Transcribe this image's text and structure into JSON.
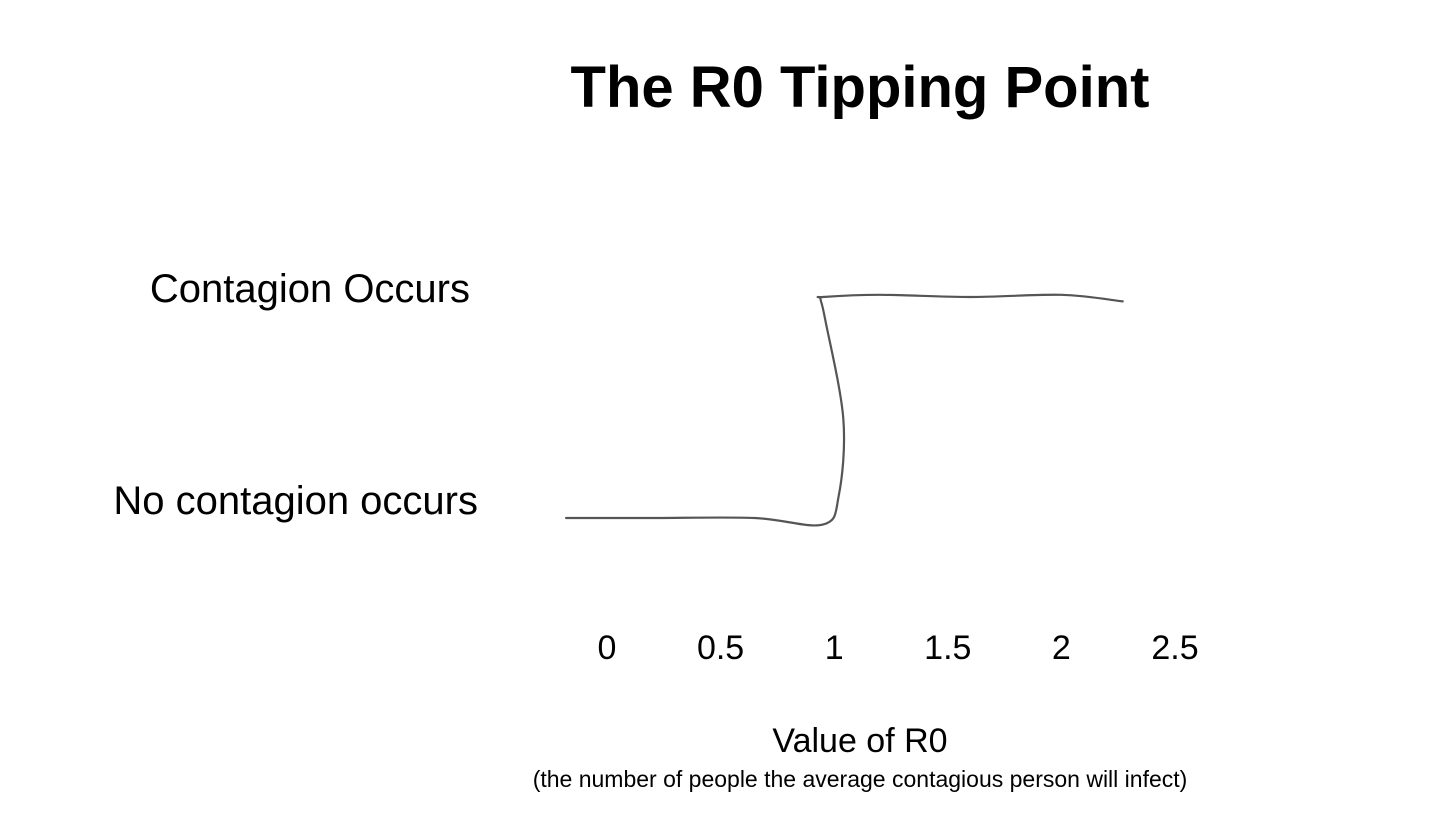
{
  "chart_data": {
    "type": "line",
    "title": "The R0 Tipping Point",
    "xlabel": "Value of R0",
    "xlabel_note": "(the number of people the average contagious person will infect)",
    "x_ticks": [
      "0",
      "0.5",
      "1",
      "1.5",
      "2",
      "2.5"
    ],
    "x_tick_values": [
      0,
      0.5,
      1,
      1.5,
      2,
      2.5
    ],
    "y_categories": [
      "No contagion occurs",
      "Contagion Occurs"
    ],
    "xlim": [
      0,
      2.5
    ],
    "ylim": [
      0,
      1
    ],
    "grid": false,
    "legend": "none",
    "line_color": "#555555",
    "series": [
      {
        "x": [
          -0.18,
          0.2,
          0.65,
          0.95,
          1.02,
          1.04,
          0.96,
          0.94,
          0.95,
          1.2,
          1.6,
          2.0,
          2.27
        ],
        "y": [
          0.0,
          0.0,
          0.0,
          -0.03,
          0.1,
          0.45,
          0.9,
          0.99,
          1.0,
          1.01,
          1.0,
          1.01,
          0.98
        ]
      }
    ]
  }
}
